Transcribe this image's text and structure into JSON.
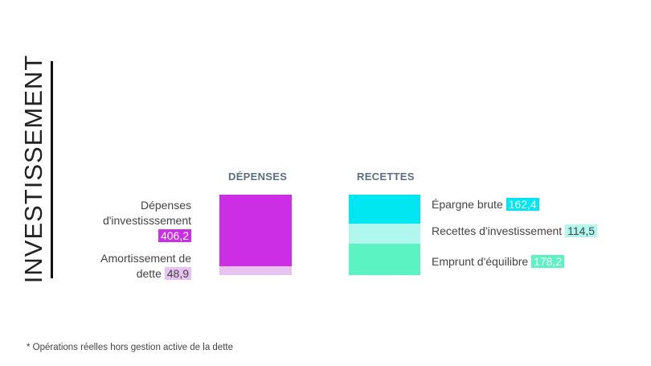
{
  "title": "INVESTISSEMENT",
  "footnote": "* Opérations réelles hors gestion active de la dette",
  "chart_data": {
    "type": "bar",
    "stacked": true,
    "categories": [
      "DÉPENSES",
      "RECETTES"
    ],
    "series": [
      {
        "category": "DÉPENSES",
        "name": "Dépenses d'investisssement",
        "value_label": "406,2",
        "value": 406.2,
        "color": "#cc2ee6",
        "label_bg": "#cc2ee6",
        "label_text": "#ffffff"
      },
      {
        "category": "DÉPENSES",
        "name": "Amortissement de dette",
        "value_label": "48,9",
        "value": 48.9,
        "color": "#e6c3f0",
        "label_bg": "#e6c3f0",
        "label_text": "#444444"
      },
      {
        "category": "RECETTES",
        "name": "Épargne brute",
        "value_label": "162,4",
        "value": 162.4,
        "color": "#00e7f2",
        "label_bg": "#00e7f2",
        "label_text": "#ffffff"
      },
      {
        "category": "RECETTES",
        "name": "Recettes d'investissement",
        "value_label": "114,5",
        "value": 114.5,
        "color": "#b0f7ee",
        "label_bg": "#b0f7ee",
        "label_text": "#444444"
      },
      {
        "category": "RECETTES",
        "name": "Emprunt d'équilibre",
        "value_label": "178,2",
        "value": 178.2,
        "color": "#5cf3c2",
        "label_bg": "#5cf3c2",
        "label_text": "#ffffff"
      }
    ]
  },
  "labels": {
    "dep1_a": "Dépenses",
    "dep1_b": "d'investisssement",
    "dep2_a": "Amortissement de",
    "dep2_b": "dette"
  }
}
